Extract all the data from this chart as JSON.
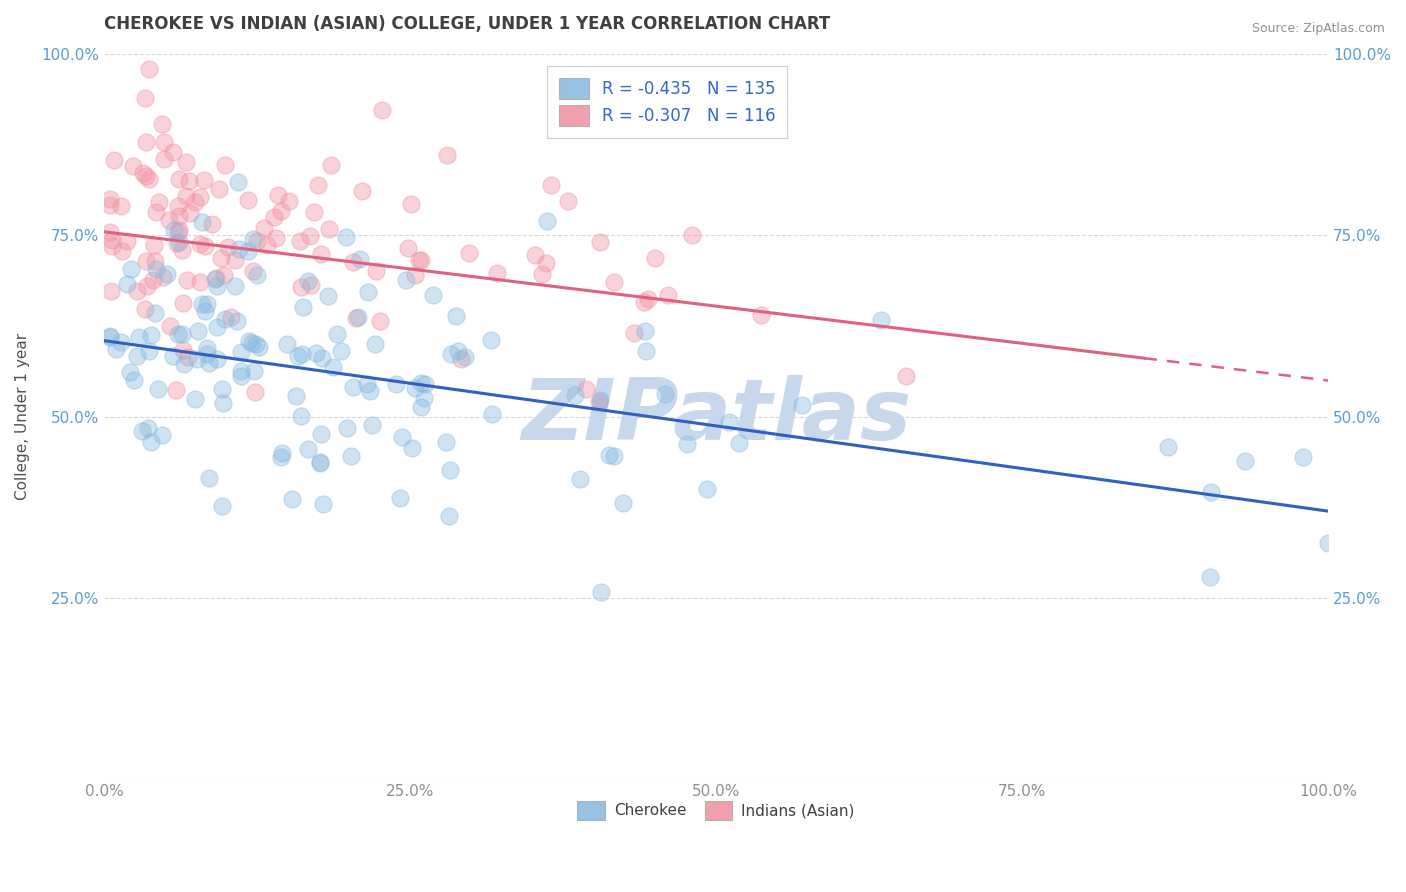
{
  "title": "CHEROKEE VS INDIAN (ASIAN) COLLEGE, UNDER 1 YEAR CORRELATION CHART",
  "source": "Source: ZipAtlas.com",
  "ylabel": "College, Under 1 year",
  "legend_entries": [
    {
      "label": "R = -0.435   N = 135",
      "color": "#a8c4e8"
    },
    {
      "label": "R = -0.307   N = 116",
      "color": "#f4b8c8"
    }
  ],
  "legend_labels_bottom": [
    "Cherokee",
    "Indians (Asian)"
  ],
  "blue_color": "#85b8e0",
  "pink_color": "#f090a0",
  "blue_line_color": "#3060c0",
  "pink_line_color": "#e06080",
  "watermark_text": "ZIPatlas",
  "watermark_color": "#c8d8ec",
  "background_color": "#ffffff",
  "grid_color": "#d8d8d8",
  "title_color": "#404040",
  "source_color": "#909090",
  "tick_color": "#5b9bd5",
  "xtick_color": "#909090",
  "figsize": [
    14.06,
    8.92
  ],
  "dpi": 100,
  "xlim": [
    0,
    100
  ],
  "ylim": [
    0,
    100
  ],
  "xticks": [
    0,
    25,
    50,
    75,
    100
  ],
  "yticks": [
    0,
    25,
    50,
    75,
    100
  ],
  "blue_line_start_y": 60.5,
  "blue_line_end_y": 37.0,
  "pink_line_start_y": 75.5,
  "pink_line_end_y": 55.0,
  "pink_line_solid_end_x": 85
}
